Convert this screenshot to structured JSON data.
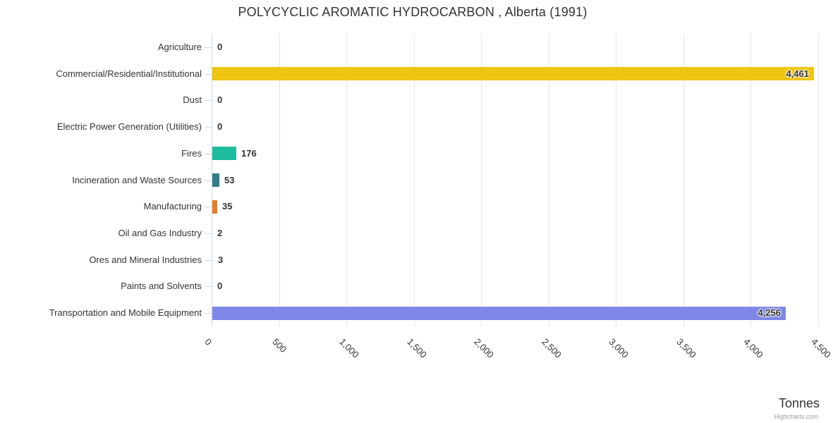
{
  "title": "POLYCYCLIC AROMATIC HYDROCARBON , Alberta (1991)",
  "credits_label": "Highcharts.com",
  "chart_data": {
    "type": "bar",
    "orientation": "horizontal",
    "title": "POLYCYCLIC AROMATIC HYDROCARBON , Alberta (1991)",
    "categories": [
      "Agriculture",
      "Commercial/Residential/Institutional",
      "Dust",
      "Electric Power Generation (Utilities)",
      "Fires",
      "Incineration and Waste Sources",
      "Manufacturing",
      "Oil and Gas Industry",
      "Ores and Mineral Industries",
      "Paints and Solvents",
      "Transportation and Mobile Equipment"
    ],
    "values": [
      0,
      4461,
      0,
      0,
      176,
      53,
      35,
      2,
      3,
      0,
      4256
    ],
    "data_labels": [
      "0",
      "4,461",
      "0",
      "0",
      "176",
      "53",
      "35",
      "2",
      "3",
      "0",
      "4,256"
    ],
    "point_colors": [
      null,
      "#eec511",
      null,
      null,
      "#1ebc9c",
      "#2e7f86",
      "#e87e22",
      null,
      null,
      null,
      "#7f87e6"
    ],
    "value_axis": {
      "label": "Tonnes",
      "min": 0,
      "max": 4500,
      "tick_step": 500,
      "ticks": [
        0,
        500,
        1000,
        1500,
        2000,
        2500,
        3000,
        3500,
        4000,
        4500
      ],
      "tick_labels": [
        "0",
        "500",
        "1,000",
        "1,500",
        "2,000",
        "2,500",
        "3,000",
        "3,500",
        "4,000",
        "4,500"
      ]
    },
    "grid": true,
    "legend": false,
    "style_colors": {
      "grid_line": "#e6e6e6",
      "axis_line": "#ccd6eb",
      "text": "#333333",
      "credits_text": "#999999",
      "background": "#ffffff"
    }
  }
}
